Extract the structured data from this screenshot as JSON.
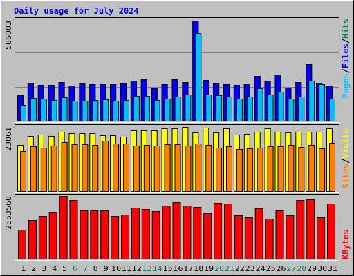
{
  "chart_data": [
    {
      "type": "bar",
      "title": "Daily usage for July 2024",
      "title_color": "#0000ff",
      "categories": [
        "1",
        "2",
        "3",
        "4",
        "5",
        "6",
        "7",
        "8",
        "9",
        "10",
        "11",
        "12",
        "13",
        "14",
        "15",
        "16",
        "17",
        "18",
        "19",
        "20",
        "21",
        "22",
        "23",
        "24",
        "25",
        "26",
        "27",
        "28",
        "29",
        "30",
        "31"
      ],
      "category_colors": [
        "#000000",
        "#000000",
        "#000000",
        "#000000",
        "#000000",
        "#00805c",
        "#00805c",
        "#000000",
        "#000000",
        "#000000",
        "#000000",
        "#000000",
        "#00805c",
        "#00805c",
        "#000000",
        "#000000",
        "#000000",
        "#000000",
        "#000000",
        "#00805c",
        "#00805c",
        "#000000",
        "#000000",
        "#000000",
        "#000000",
        "#000000",
        "#00805c",
        "#00805c",
        "#000000",
        "#000000",
        "#000000"
      ],
      "legend_separator": "/",
      "ylim": [
        0,
        586003
      ],
      "yticks": [
        586003
      ],
      "series": [
        {
          "name": "Hits",
          "color": "#00805c",
          "values": [
            149517,
            218214,
            210132,
            210132,
            226296,
            206091,
            218214,
            214173,
            214173,
            214173,
            218214,
            234378,
            242460,
            189927,
            214173,
            242460,
            226296,
            586003,
            238419,
            218214,
            214173,
            210132,
            214173,
            262665,
            230337,
            270747,
            193968,
            226296,
            331362,
            222255,
            206091
          ]
        },
        {
          "name": "Files",
          "color": "#0000ff",
          "values": [
            149517,
            218214,
            210132,
            210132,
            226296,
            206091,
            218214,
            214173,
            214173,
            214173,
            218214,
            234378,
            242460,
            189927,
            214173,
            242460,
            226296,
            586003,
            238419,
            218214,
            214173,
            210132,
            214173,
            262665,
            230337,
            270747,
            193968,
            226296,
            331362,
            222255,
            206091
          ]
        },
        {
          "name": "Pages",
          "color": "#00c0ff",
          "values": [
            92943,
            133353,
            129312,
            121230,
            137394,
            117189,
            117189,
            121230,
            125271,
            117189,
            121230,
            145476,
            145476,
            121230,
            129312,
            141435,
            153558,
            513207,
            153558,
            149517,
            141435,
            129312,
            141435,
            189927,
            153558,
            169722,
            129312,
            141435,
            234378,
            214173,
            129312
          ]
        }
      ]
    },
    {
      "type": "bar",
      "ylim": [
        0,
        23061
      ],
      "yticks": [
        23061
      ],
      "series": [
        {
          "name": "Visits",
          "color": "#ffff00",
          "values": [
            16616,
            19840,
            20336,
            19840,
            21328,
            20832,
            20832,
            20832,
            20088,
            20088,
            19592,
            21824,
            21824,
            21824,
            22568,
            22568,
            23061,
            21080,
            22816,
            21080,
            22568,
            20336,
            20584,
            21328,
            22568,
            21328,
            21080,
            21328,
            21328,
            21328,
            22568
          ]
        },
        {
          "name": "Sites",
          "color": "#ff8000",
          "values": [
            14384,
            16120,
            15624,
            16368,
            17608,
            16864,
            16864,
            16616,
            18104,
            17112,
            17112,
            16368,
            16616,
            16368,
            16864,
            16864,
            16368,
            17112,
            16616,
            15624,
            16120,
            15128,
            15376,
            15624,
            16120,
            16120,
            16616,
            15872,
            16616,
            15376,
            17360
          ]
        }
      ]
    },
    {
      "type": "bar",
      "ylim": [
        0,
        2553568
      ],
      "yticks": [
        2553568
      ],
      "series": [
        {
          "name": "KBytes",
          "color": "#ff0000",
          "values": [
            1178562,
            1571416,
            1739782,
            1908148,
            2553568,
            2385185,
            1964270,
            1964270,
            1964270,
            1739782,
            1795904,
            2076514,
            2020392,
            1936209,
            2160697,
            2301002,
            2160697,
            2104575,
            1852026,
            2272941,
            2244880,
            1767843,
            1683660,
            2048453,
            1627538,
            1964270,
            1767843,
            2385185,
            2413246,
            1683660,
            2244880
          ]
        }
      ]
    }
  ]
}
